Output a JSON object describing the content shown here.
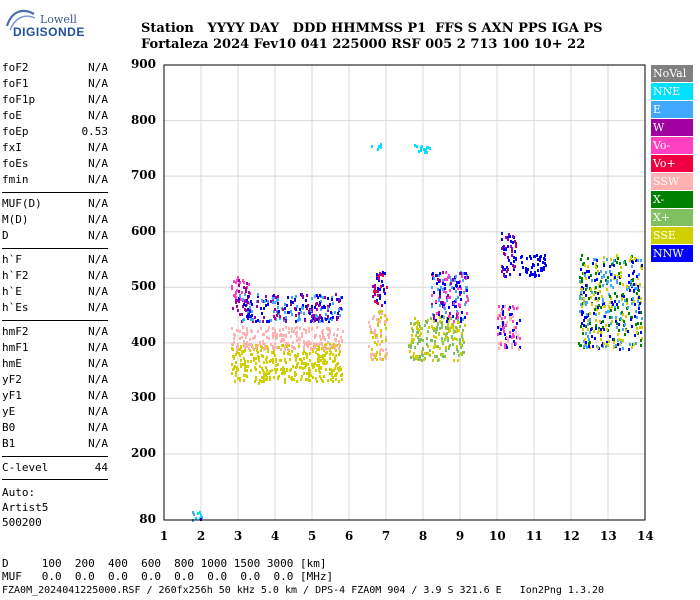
{
  "logo": {
    "top": "Lowell",
    "bottom": "DIGISONDE"
  },
  "header": {
    "line1": "Station   YYYY DAY   DDD HHMMSS P1  FFS S AXN PPS IGA PS",
    "line2": "Fortaleza 2024 Fev10 041 225000 RSF 005 2 713 100 10+ 22"
  },
  "params": [
    {
      "group": [
        {
          "label": "foF2",
          "value": "N/A"
        },
        {
          "label": "foF1",
          "value": "N/A"
        },
        {
          "label": "foF1p",
          "value": "N/A"
        },
        {
          "label": "foE",
          "value": "N/A"
        },
        {
          "label": "foEp",
          "value": "0.53"
        },
        {
          "label": "fxI",
          "value": "N/A"
        },
        {
          "label": "foEs",
          "value": "N/A"
        },
        {
          "label": "fmin",
          "value": "N/A"
        }
      ]
    },
    {
      "group": [
        {
          "label": "MUF(D)",
          "value": "N/A"
        },
        {
          "label": "M(D)",
          "value": "N/A"
        },
        {
          "label": "D",
          "value": "N/A"
        }
      ]
    },
    {
      "group": [
        {
          "label": "h`F",
          "value": "N/A"
        },
        {
          "label": "h`F2",
          "value": "N/A"
        },
        {
          "label": "h`E",
          "value": "N/A"
        },
        {
          "label": "h`Es",
          "value": "N/A"
        }
      ]
    },
    {
      "group": [
        {
          "label": "hmF2",
          "value": "N/A"
        },
        {
          "label": "hmF1",
          "value": "N/A"
        },
        {
          "label": "hmE",
          "value": "N/A"
        },
        {
          "label": "yF2",
          "value": "N/A"
        },
        {
          "label": "yF1",
          "value": "N/A"
        },
        {
          "label": "yE",
          "value": "N/A"
        },
        {
          "label": "B0",
          "value": "N/A"
        },
        {
          "label": "B1",
          "value": "N/A"
        }
      ]
    },
    {
      "group": [
        {
          "label": "C-level",
          "value": "44"
        }
      ]
    }
  ],
  "auto": {
    "line1": "Auto:",
    "line2": "Artist5",
    "line3": "500200"
  },
  "legend": [
    {
      "label": "NoVal",
      "color": "#808080"
    },
    {
      "label": "NNE",
      "color": "#00e0ff"
    },
    {
      "label": "E",
      "color": "#40a8ff"
    },
    {
      "label": "W",
      "color": "#a000a0"
    },
    {
      "label": "Vo-",
      "color": "#ff40c0"
    },
    {
      "label": "Vo+",
      "color": "#f00040"
    },
    {
      "label": "SSW",
      "color": "#ffb0b0"
    },
    {
      "label": "X-",
      "color": "#008000"
    },
    {
      "label": "X+",
      "color": "#80c060"
    },
    {
      "label": "SSE",
      "color": "#d0d000"
    },
    {
      "label": "NNW",
      "color": "#0000ff"
    }
  ],
  "chart_data": {
    "type": "scatter",
    "x_ticks": [
      "1",
      "2",
      "3",
      "4",
      "5",
      "6",
      "7",
      "8",
      "9",
      "10",
      "11",
      "12",
      "13",
      "14"
    ],
    "y_ticks": [
      "80",
      "200",
      "300",
      "400",
      "500",
      "600",
      "700",
      "800",
      "900"
    ],
    "xlim": [
      1,
      14
    ],
    "ylim": [
      80,
      900
    ],
    "grid": true,
    "legend_placement": "right",
    "clusters": [
      {
        "x": [
          1.7,
          2.0
        ],
        "y": [
          80,
          100
        ],
        "colors": [
          "NNW",
          "NNE",
          "E"
        ]
      },
      {
        "x": [
          2.8,
          3.3
        ],
        "y": [
          460,
          520
        ],
        "colors": [
          "W",
          "Vo-"
        ]
      },
      {
        "x": [
          2.8,
          5.8
        ],
        "y": [
          330,
          400
        ],
        "colors": [
          "SSE"
        ]
      },
      {
        "x": [
          2.8,
          5.8
        ],
        "y": [
          390,
          430
        ],
        "colors": [
          "SSW"
        ]
      },
      {
        "x": [
          3.0,
          5.8
        ],
        "y": [
          440,
          490
        ],
        "colors": [
          "E",
          "NNW",
          "W"
        ]
      },
      {
        "x": [
          6.5,
          7.0
        ],
        "y": [
          370,
          460
        ],
        "colors": [
          "SSE",
          "SSW"
        ]
      },
      {
        "x": [
          6.6,
          7.0
        ],
        "y": [
          470,
          530
        ],
        "colors": [
          "W",
          "NNW",
          "Vo+"
        ]
      },
      {
        "x": [
          6.6,
          6.9
        ],
        "y": [
          750,
          760
        ],
        "colors": [
          "NNE"
        ]
      },
      {
        "x": [
          7.7,
          8.2
        ],
        "y": [
          745,
          760
        ],
        "colors": [
          "NNE"
        ]
      },
      {
        "x": [
          7.6,
          9.1
        ],
        "y": [
          370,
          450
        ],
        "colors": [
          "SSE",
          "X+"
        ]
      },
      {
        "x": [
          8.2,
          9.2
        ],
        "y": [
          440,
          530
        ],
        "colors": [
          "NNW",
          "W",
          "E",
          "Vo-"
        ]
      },
      {
        "x": [
          10.0,
          10.6
        ],
        "y": [
          390,
          470
        ],
        "colors": [
          "SSW",
          "Vo-",
          "NNW"
        ]
      },
      {
        "x": [
          10.1,
          10.5
        ],
        "y": [
          520,
          600
        ],
        "colors": [
          "NNW",
          "W"
        ]
      },
      {
        "x": [
          10.6,
          11.3
        ],
        "y": [
          520,
          560
        ],
        "colors": [
          "NNW"
        ]
      },
      {
        "x": [
          12.2,
          13.9
        ],
        "y": [
          390,
          560
        ],
        "colors": [
          "NNW",
          "E",
          "X-",
          "SSE"
        ]
      }
    ]
  },
  "footer": {
    "line1": "D     100  200  400  600  800 1000 1500 3000 [km]",
    "line2": "MUF   0.0  0.0  0.0  0.0  0.0  0.0  0.0  0.0 [MHz]",
    "line3": "FZA0M_2024041225000.RSF / 260fx256h 50 kHz 5.0 km / DPS-4 FZA0M 904 / 3.9 S 321.6 E   Ion2Png 1.3.20"
  }
}
